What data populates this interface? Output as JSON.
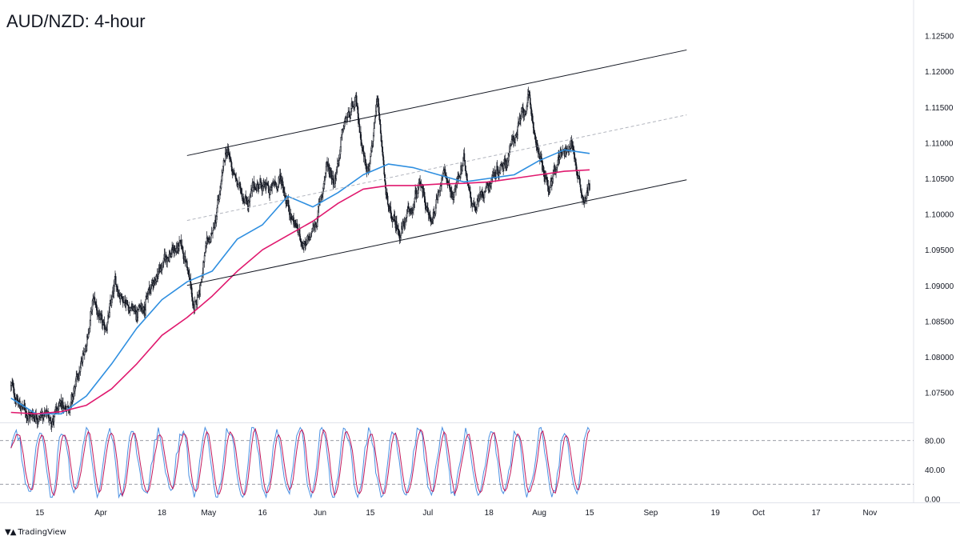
{
  "header": {
    "title": "AUD/NZD: 4-hour"
  },
  "footer": {
    "brand": "TradingView",
    "brand_icon": "tradingview-logo-icon"
  },
  "colors": {
    "candle": "#131722",
    "ma_fast": "#2f8fe0",
    "ma_slow": "#e0196e",
    "channel": "#131722",
    "midline": "#b2b5be",
    "stoch_k": "#4a90e2",
    "stoch_d": "#c2185b"
  },
  "chart_data": [
    {
      "type": "candlestick",
      "title": "AUD/NZD: 4-hour",
      "y_axis": {
        "position": "right",
        "ylim": [
          1.0708,
          1.13
        ],
        "ticks": [
          "1.12500",
          "1.12000",
          "1.11500",
          "1.11000",
          "1.10500",
          "1.10000",
          "1.09500",
          "1.09000",
          "1.08500",
          "1.08000",
          "1.07500"
        ]
      },
      "x_axis": {
        "ticks": [
          "15",
          "Apr",
          "18",
          "May",
          "16",
          "Jun",
          "15",
          "Jul",
          "18",
          "Aug",
          "15",
          "Sep",
          "19",
          "Oct",
          "17",
          "Nov"
        ],
        "tick_dates": [
          "2022-03-15",
          "2022-04-01",
          "2022-04-18",
          "2022-05-01",
          "2022-05-16",
          "2022-06-01",
          "2022-06-15",
          "2022-07-01",
          "2022-07-18",
          "2022-08-01",
          "2022-08-15",
          "2022-09-01",
          "2022-09-19",
          "2022-10-01",
          "2022-10-17",
          "2022-11-01"
        ]
      },
      "price_path": [
        [
          "2022-03-07",
          1.076
        ],
        [
          "2022-03-09",
          1.0735
        ],
        [
          "2022-03-12",
          1.0718
        ],
        [
          "2022-03-15",
          1.0722
        ],
        [
          "2022-03-18",
          1.0712
        ],
        [
          "2022-03-21",
          1.0725
        ],
        [
          "2022-03-24",
          1.074
        ],
        [
          "2022-03-27",
          1.0795
        ],
        [
          "2022-03-30",
          1.088
        ],
        [
          "2022-04-02",
          1.083
        ],
        [
          "2022-04-05",
          1.09
        ],
        [
          "2022-04-08",
          1.088
        ],
        [
          "2022-04-11",
          1.086
        ],
        [
          "2022-04-14",
          1.0885
        ],
        [
          "2022-04-17",
          1.092
        ],
        [
          "2022-04-20",
          1.0945
        ],
        [
          "2022-04-23",
          1.0955
        ],
        [
          "2022-04-25",
          1.093
        ],
        [
          "2022-04-27",
          1.086
        ],
        [
          "2022-04-30",
          1.094
        ],
        [
          "2022-05-03",
          1.099
        ],
        [
          "2022-05-06",
          1.109
        ],
        [
          "2022-05-09",
          1.104
        ],
        [
          "2022-05-12",
          1.102
        ],
        [
          "2022-05-15",
          1.1045
        ],
        [
          "2022-05-18",
          1.103
        ],
        [
          "2022-05-21",
          1.105
        ],
        [
          "2022-05-24",
          1.1
        ],
        [
          "2022-05-26",
          1.0975
        ],
        [
          "2022-05-28",
          1.095
        ],
        [
          "2022-05-31",
          1.099
        ],
        [
          "2022-06-03",
          1.107
        ],
        [
          "2022-06-05",
          1.105
        ],
        [
          "2022-06-08",
          1.113
        ],
        [
          "2022-06-11",
          1.115
        ],
        [
          "2022-06-14",
          1.106
        ],
        [
          "2022-06-17",
          1.115
        ],
        [
          "2022-06-20",
          1.1
        ],
        [
          "2022-06-23",
          1.0975
        ],
        [
          "2022-06-26",
          1.1
        ],
        [
          "2022-06-29",
          1.104
        ],
        [
          "2022-07-02",
          1.0985
        ],
        [
          "2022-07-05",
          1.106
        ],
        [
          "2022-07-08",
          1.103
        ],
        [
          "2022-07-11",
          1.107
        ],
        [
          "2022-07-14",
          1.101
        ],
        [
          "2022-07-17",
          1.104
        ],
        [
          "2022-07-20",
          1.106
        ],
        [
          "2022-07-23",
          1.108
        ],
        [
          "2022-07-26",
          1.112
        ],
        [
          "2022-07-29",
          1.116
        ],
        [
          "2022-08-01",
          1.108
        ],
        [
          "2022-08-04",
          1.103
        ],
        [
          "2022-08-07",
          1.109
        ],
        [
          "2022-08-10",
          1.11
        ],
        [
          "2022-08-13",
          1.1025
        ],
        [
          "2022-08-15",
          1.104
        ]
      ],
      "moving_averages": [
        {
          "name": "",
          "color": "#2f8fe0",
          "points": [
            [
              "2022-03-07",
              1.0742
            ],
            [
              "2022-03-14",
              1.072
            ],
            [
              "2022-03-21",
              1.072
            ],
            [
              "2022-03-28",
              1.0745
            ],
            [
              "2022-04-04",
              1.079
            ],
            [
              "2022-04-11",
              1.084
            ],
            [
              "2022-04-18",
              1.088
            ],
            [
              "2022-04-25",
              1.0905
            ],
            [
              "2022-05-02",
              1.092
            ],
            [
              "2022-05-09",
              1.0965
            ],
            [
              "2022-05-16",
              1.0985
            ],
            [
              "2022-05-23",
              1.1025
            ],
            [
              "2022-05-30",
              1.101
            ],
            [
              "2022-06-06",
              1.103
            ],
            [
              "2022-06-13",
              1.1055
            ],
            [
              "2022-06-20",
              1.107
            ],
            [
              "2022-06-27",
              1.1065
            ],
            [
              "2022-07-04",
              1.1055
            ],
            [
              "2022-07-11",
              1.1045
            ],
            [
              "2022-07-18",
              1.105
            ],
            [
              "2022-07-25",
              1.1055
            ],
            [
              "2022-08-01",
              1.1075
            ],
            [
              "2022-08-08",
              1.109
            ],
            [
              "2022-08-15",
              1.1085
            ]
          ]
        },
        {
          "name": "",
          "color": "#e0196e",
          "points": [
            [
              "2022-03-07",
              1.0722
            ],
            [
              "2022-03-14",
              1.072
            ],
            [
              "2022-03-21",
              1.0723
            ],
            [
              "2022-03-28",
              1.0732
            ],
            [
              "2022-04-04",
              1.0755
            ],
            [
              "2022-04-11",
              1.079
            ],
            [
              "2022-04-18",
              1.083
            ],
            [
              "2022-04-25",
              1.0855
            ],
            [
              "2022-05-02",
              1.0885
            ],
            [
              "2022-05-09",
              1.092
            ],
            [
              "2022-05-16",
              1.095
            ],
            [
              "2022-05-23",
              1.097
            ],
            [
              "2022-05-30",
              1.099
            ],
            [
              "2022-06-06",
              1.1015
            ],
            [
              "2022-06-13",
              1.1035
            ],
            [
              "2022-06-20",
              1.104
            ],
            [
              "2022-06-27",
              1.104
            ],
            [
              "2022-07-04",
              1.1042
            ],
            [
              "2022-07-11",
              1.1043
            ],
            [
              "2022-07-18",
              1.1045
            ],
            [
              "2022-07-25",
              1.105
            ],
            [
              "2022-08-01",
              1.1055
            ],
            [
              "2022-08-08",
              1.106
            ],
            [
              "2022-08-15",
              1.1062
            ]
          ]
        }
      ],
      "channel": {
        "upper": [
          [
            "2022-04-25",
            1.1082
          ],
          [
            "2022-09-11",
            1.123
          ]
        ],
        "lower": [
          [
            "2022-04-25",
            1.09
          ],
          [
            "2022-09-11",
            1.1048
          ]
        ],
        "mid": [
          [
            "2022-04-25",
            1.0991
          ],
          [
            "2022-09-11",
            1.1139
          ]
        ]
      }
    },
    {
      "type": "line",
      "y_axis": {
        "ylim": [
          -5,
          105
        ],
        "ticks": [
          "80.00",
          "40.00",
          "0.00"
        ],
        "levels": [
          80,
          20
        ]
      },
      "series": [
        {
          "name": "",
          "color": "#4a90e2"
        },
        {
          "name": "",
          "color": "#c2185b"
        }
      ]
    }
  ]
}
